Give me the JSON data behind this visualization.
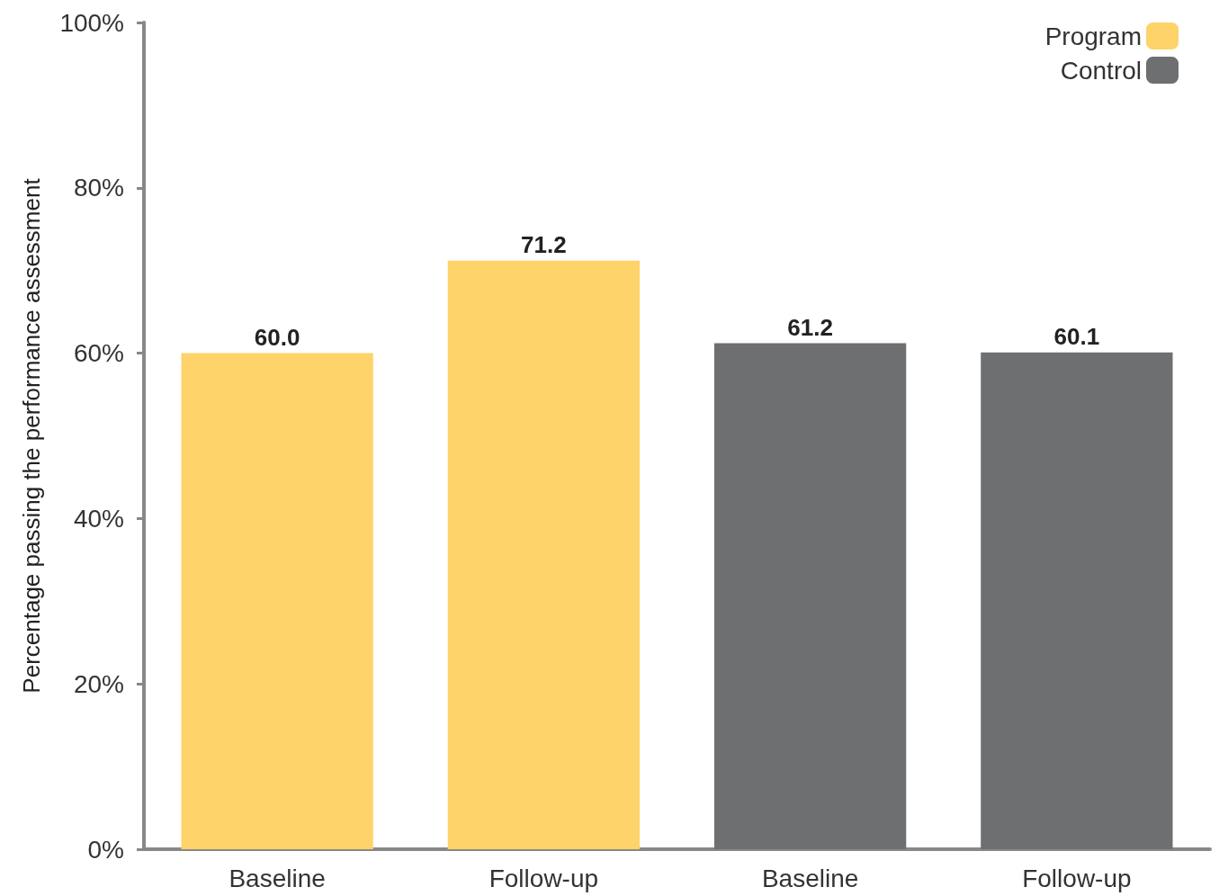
{
  "chart_data": {
    "type": "bar",
    "ylabel": "Percentage passing the performance assessment",
    "categories": [
      "Baseline",
      "Follow-up",
      "Baseline",
      "Follow-up"
    ],
    "series": [
      {
        "name": "Program",
        "color": "#fdd36a",
        "values": [
          60.0,
          71.2,
          null,
          null
        ],
        "value_labels": [
          "60.0",
          "71.2",
          null,
          null
        ]
      },
      {
        "name": "Control",
        "color": "#6e6f71",
        "values": [
          null,
          null,
          61.2,
          60.1
        ],
        "value_labels": [
          null,
          null,
          "61.2",
          "60.1"
        ]
      }
    ],
    "ylim": [
      0,
      100
    ],
    "yticks": [
      {
        "value": 0,
        "label": "0%"
      },
      {
        "value": 20,
        "label": "20%"
      },
      {
        "value": 40,
        "label": "40%"
      },
      {
        "value": 60,
        "label": "60%"
      },
      {
        "value": 80,
        "label": "80%"
      },
      {
        "value": 100,
        "label": "100%"
      }
    ],
    "grid": false,
    "legend": "top right"
  }
}
